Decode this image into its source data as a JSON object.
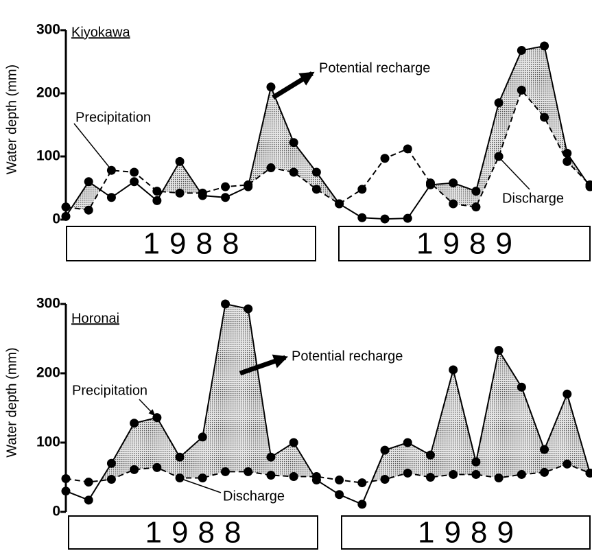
{
  "chart_data": [
    {
      "type": "line",
      "title": "Kiyokawa",
      "ylabel": "Water depth (mm)",
      "ylim": [
        0,
        300
      ],
      "yticks": [
        0,
        100,
        200,
        300
      ],
      "groups": [
        "1988",
        "1989"
      ],
      "fill_label": "Potential recharge",
      "series": [
        {
          "name": "Precipitation",
          "color": "#000000",
          "dash": false,
          "values": [
            5,
            60,
            35,
            60,
            30,
            92,
            38,
            35,
            52,
            210,
            122,
            75,
            25,
            3,
            1,
            2,
            55,
            58,
            45,
            185,
            268,
            275,
            105,
            52
          ]
        },
        {
          "name": "Discharge",
          "color": "#000000",
          "dash": true,
          "values": [
            20,
            15,
            78,
            75,
            45,
            42,
            42,
            52,
            55,
            82,
            75,
            48,
            25,
            48,
            97,
            112,
            58,
            25,
            20,
            100,
            205,
            162,
            92,
            55
          ]
        }
      ]
    },
    {
      "type": "line",
      "title": "Horonai",
      "ylabel": "Water depth (mm)",
      "ylim": [
        0,
        300
      ],
      "yticks": [
        0,
        100,
        200,
        300
      ],
      "groups": [
        "1988",
        "1989"
      ],
      "fill_label": "Potential recharge",
      "series": [
        {
          "name": "Precipitation",
          "color": "#000000",
          "dash": false,
          "values": [
            30,
            17,
            70,
            128,
            136,
            79,
            108,
            300,
            293,
            79,
            100,
            46,
            25,
            11,
            89,
            100,
            82,
            205,
            72,
            233,
            180,
            90,
            170,
            56
          ]
        },
        {
          "name": "Discharge",
          "color": "#000000",
          "dash": true,
          "values": [
            48,
            43,
            47,
            61,
            64,
            49,
            49,
            58,
            58,
            53,
            51,
            51,
            46,
            42,
            47,
            56,
            50,
            54,
            54,
            49,
            54,
            57,
            69,
            56
          ]
        }
      ]
    }
  ]
}
